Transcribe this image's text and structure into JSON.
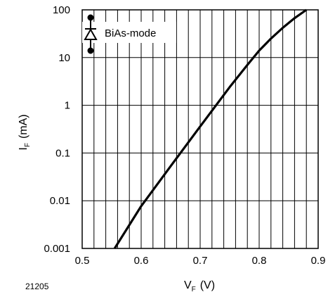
{
  "figure_id": "21205",
  "chart_data": {
    "type": "line",
    "title": "",
    "xlabel": {
      "main": "V",
      "sub": "F",
      "unit": "(V)"
    },
    "ylabel": {
      "main": "I",
      "sub": "F",
      "unit": "(mA)"
    },
    "xlim": [
      0.5,
      0.9
    ],
    "ylim": [
      0.001,
      100
    ],
    "yscale": "log",
    "grid": true,
    "xticks": [
      "0.5",
      "0.6",
      "0.7",
      "0.8",
      "0.9"
    ],
    "yticks": [
      "0.001",
      "0.01",
      "0.1",
      "1",
      "10",
      "100"
    ],
    "legend": {
      "label": "BiAs-mode",
      "placement": "top-left",
      "icon": "diode-symbol-icon"
    },
    "series": [
      {
        "x": [
          0.555,
          0.6,
          0.65,
          0.7,
          0.75,
          0.78,
          0.8,
          0.82,
          0.84,
          0.86,
          0.88
        ],
        "y": [
          0.001,
          0.0077,
          0.053,
          0.36,
          2.4,
          7.0,
          14,
          25,
          42,
          67,
          100
        ]
      }
    ]
  }
}
